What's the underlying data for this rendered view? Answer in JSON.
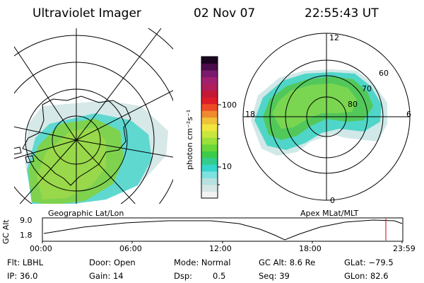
{
  "header": {
    "instrument": "Ultraviolet Imager",
    "date": "02 Nov 07",
    "time": "22:55:43 UT"
  },
  "left_panel": {
    "label": "Geographic Lat/Lon"
  },
  "right_panel": {
    "label": "Apex MLat/MLT",
    "mlt_labels": {
      "top": "12",
      "left": "18",
      "right": "6",
      "bottom": "0"
    },
    "lat_labels": [
      "60",
      "70",
      "80"
    ]
  },
  "colorbar": {
    "unit_label": "photon cm⁻²s⁻¹",
    "tick_labels": [
      "100",
      "10"
    ],
    "colors": [
      "#f2f2f2",
      "#d6e6e6",
      "#b8e0e0",
      "#7fe0e0",
      "#36d6cc",
      "#34cc8e",
      "#3ccc4a",
      "#6ad63a",
      "#9ae03a",
      "#c8e63e",
      "#f0e63e",
      "#f0c23a",
      "#f08a2e",
      "#ee4a26",
      "#dd1c2a",
      "#c21a36",
      "#b01e5a",
      "#a0206e",
      "#7a1a6e",
      "#4a0c4a",
      "#1a0420"
    ]
  },
  "timeline": {
    "axis_label": "GC Alt",
    "y_ticks": [
      "9.0",
      "1.8"
    ],
    "x_ticks": [
      "00:00",
      "06:00",
      "12:00",
      "18:00",
      "23:59"
    ],
    "marker_color": "#cc0000"
  },
  "info": {
    "filter": "Flt: LBHL",
    "ip": "IP: 36.0",
    "door": "Door: Open",
    "gain": "Gain: 14",
    "mode": "Mode: Normal",
    "dsp_label": "Dsp:",
    "dsp_value": "0.5",
    "gc_alt": "GC Alt: 8.6 Re",
    "seq": "Seq: 39",
    "glat": "GLat: −79.5",
    "glon": "GLon: 82.6"
  }
}
